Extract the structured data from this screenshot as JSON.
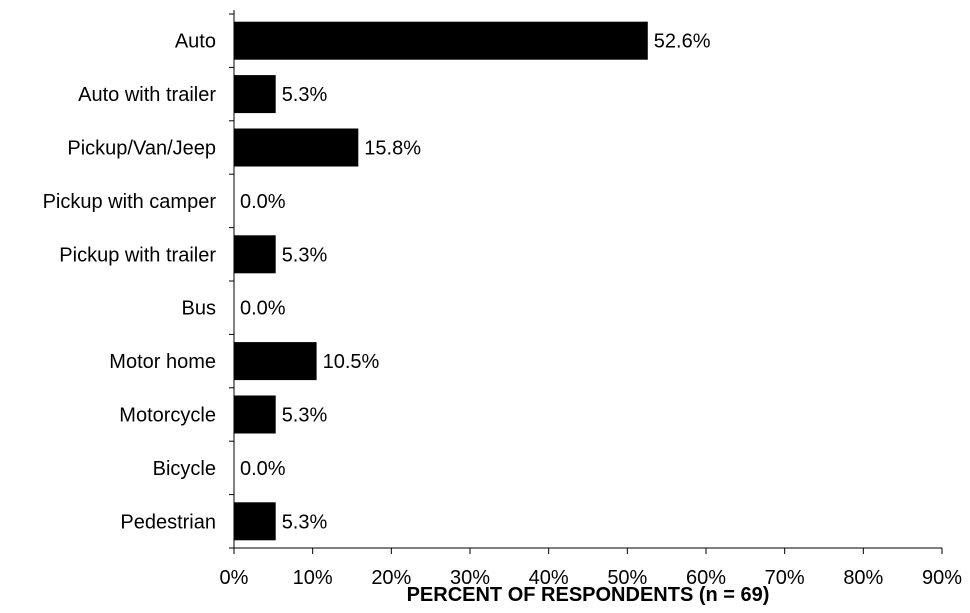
{
  "chart_data": {
    "type": "bar",
    "orientation": "horizontal",
    "categories": [
      "Auto",
      "Auto with trailer",
      "Pickup/Van/Jeep",
      "Pickup with camper",
      "Pickup with trailer",
      "Bus",
      "Motor home",
      "Motorcycle",
      "Bicycle",
      "Pedestrian"
    ],
    "values": [
      52.6,
      5.3,
      15.8,
      0.0,
      5.3,
      0.0,
      10.5,
      5.3,
      0.0,
      5.3
    ],
    "data_labels": [
      "52.6%",
      "5.3%",
      "15.8%",
      "0.0%",
      "5.3%",
      "0.0%",
      "10.5%",
      "5.3%",
      "0.0%",
      "5.3%"
    ],
    "xlabel": "PERCENT OF RESPONDENTS (n = 69)",
    "ylabel": "",
    "title": "",
    "xlim": [
      0,
      90
    ],
    "x_ticks": [
      0,
      10,
      20,
      30,
      40,
      50,
      60,
      70,
      80,
      90
    ],
    "x_tick_labels": [
      "0%",
      "10%",
      "20%",
      "30%",
      "40%",
      "50%",
      "60%",
      "70%",
      "80%",
      "90%"
    ],
    "grid": false,
    "legend": "none",
    "bar_color": "#000000"
  }
}
